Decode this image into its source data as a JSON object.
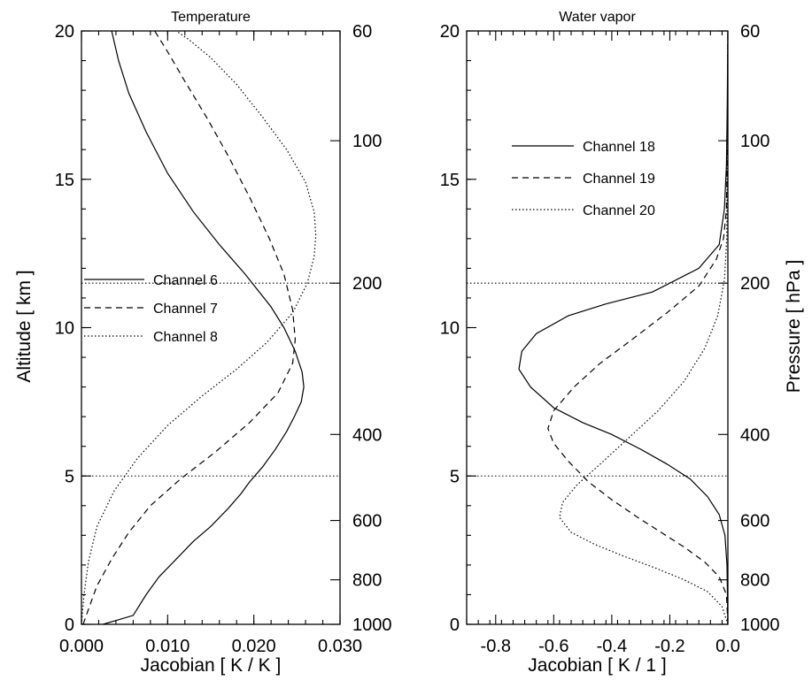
{
  "chart_data": [
    {
      "type": "line",
      "title": "Temperature",
      "xlabel": "Jacobian [ K / K ]",
      "ylabel": "Altitude [ km ]",
      "xlim": [
        0.0,
        0.03
      ],
      "ylim": [
        0,
        20
      ],
      "xticks": [
        "0.000",
        "0.010",
        "0.020",
        "0.030"
      ],
      "xtick_values": [
        0.0,
        0.01,
        0.02,
        0.03
      ],
      "yticks": [
        "0",
        "5",
        "10",
        "15",
        "20"
      ],
      "ytick_values": [
        0,
        5,
        10,
        15,
        20
      ],
      "y2ticks": [
        {
          "label": "60",
          "alt": 20.0
        },
        {
          "label": "100",
          "alt": 16.3
        },
        {
          "label": "200",
          "alt": 11.5
        },
        {
          "label": "400",
          "alt": 6.4
        },
        {
          "label": "600",
          "alt": 3.5
        },
        {
          "label": "800",
          "alt": 1.5
        },
        {
          "label": "1000",
          "alt": 0.0
        }
      ],
      "legend_position": "middle-left",
      "series": [
        {
          "name": "Channel 6",
          "style": "solid",
          "x": [
            0.0025,
            0.006,
            0.0075,
            0.009,
            0.011,
            0.013,
            0.015,
            0.017,
            0.0185,
            0.0195,
            0.021,
            0.0225,
            0.0238,
            0.0247,
            0.0255,
            0.0258,
            0.0256,
            0.0248,
            0.0235,
            0.022,
            0.019,
            0.016,
            0.013,
            0.01,
            0.0075,
            0.0055,
            0.0043,
            0.0035
          ],
          "y": [
            0.0,
            0.3,
            1.0,
            1.6,
            2.2,
            2.8,
            3.3,
            3.9,
            4.4,
            4.8,
            5.3,
            5.9,
            6.5,
            7.0,
            7.5,
            8.0,
            8.5,
            9.2,
            10.0,
            10.7,
            11.8,
            12.8,
            13.9,
            15.2,
            16.6,
            17.9,
            19.0,
            20.0
          ]
        },
        {
          "name": "Channel 7",
          "style": "dashed",
          "x": [
            0.0002,
            0.0008,
            0.0018,
            0.0035,
            0.0055,
            0.008,
            0.0115,
            0.0155,
            0.0195,
            0.0228,
            0.0245,
            0.0248,
            0.0245,
            0.0235,
            0.0218,
            0.0195,
            0.017,
            0.0145,
            0.012,
            0.01,
            0.0085
          ],
          "y": [
            0.0,
            0.5,
            1.3,
            2.2,
            3.1,
            4.0,
            4.9,
            5.8,
            6.8,
            7.8,
            8.8,
            9.6,
            10.6,
            11.8,
            13.0,
            14.4,
            15.8,
            17.1,
            18.3,
            19.3,
            20.0
          ]
        },
        {
          "name": "Channel 8",
          "style": "dotted",
          "x": [
            0.0,
            0.0003,
            0.0008,
            0.0018,
            0.0038,
            0.0065,
            0.01,
            0.014,
            0.018,
            0.0215,
            0.0245,
            0.0262,
            0.027,
            0.0272,
            0.027,
            0.026,
            0.0238,
            0.021,
            0.018,
            0.015,
            0.0125,
            0.011
          ],
          "y": [
            0.0,
            1.0,
            2.1,
            3.3,
            4.5,
            5.6,
            6.7,
            7.7,
            8.6,
            9.5,
            10.5,
            11.5,
            12.4,
            13.1,
            13.9,
            14.9,
            16.0,
            17.1,
            18.2,
            19.1,
            19.7,
            20.0
          ]
        }
      ],
      "reference_lines": [
        {
          "y": 11.5,
          "style": "dotted"
        },
        {
          "y": 5.0,
          "style": "dotted"
        }
      ]
    },
    {
      "type": "line",
      "title": "Water vapor",
      "xlabel": "Jacobian [ K / 1 ]",
      "ylabel": "Pressure [ hPa ]",
      "xlim": [
        -0.9,
        0.0
      ],
      "ylim": [
        0,
        20
      ],
      "xticks": [
        "-0.8",
        "-0.6",
        "-0.4",
        "-0.2",
        "0.0"
      ],
      "xtick_values": [
        -0.8,
        -0.6,
        -0.4,
        -0.2,
        0.0
      ],
      "yticks": [
        "0",
        "5",
        "10",
        "15",
        "20"
      ],
      "ytick_values": [
        0,
        5,
        10,
        15,
        20
      ],
      "y2ticks": [
        {
          "label": "60",
          "alt": 20.0
        },
        {
          "label": "100",
          "alt": 16.3
        },
        {
          "label": "200",
          "alt": 11.5
        },
        {
          "label": "400",
          "alt": 6.4
        },
        {
          "label": "600",
          "alt": 3.5
        },
        {
          "label": "800",
          "alt": 1.5
        },
        {
          "label": "1000",
          "alt": 0.0
        }
      ],
      "legend_position": "upper-middle",
      "series": [
        {
          "name": "Channel 18",
          "style": "solid",
          "x": [
            0.0,
            -0.003,
            -0.01,
            -0.03,
            -0.07,
            -0.13,
            -0.21,
            -0.3,
            -0.4,
            -0.5,
            -0.6,
            -0.68,
            -0.72,
            -0.71,
            -0.66,
            -0.55,
            -0.42,
            -0.26,
            -0.1,
            -0.03,
            -0.012,
            -0.005,
            -0.002,
            0.0
          ],
          "y": [
            0.0,
            2.0,
            3.0,
            3.7,
            4.3,
            4.9,
            5.4,
            5.9,
            6.4,
            6.8,
            7.3,
            8.0,
            8.6,
            9.2,
            9.8,
            10.4,
            10.8,
            11.2,
            12.0,
            12.8,
            14.0,
            15.5,
            17.5,
            20.0
          ]
        },
        {
          "name": "Channel 19",
          "style": "dashed",
          "x": [
            0.0,
            -0.005,
            -0.03,
            -0.08,
            -0.15,
            -0.23,
            -0.31,
            -0.4,
            -0.48,
            -0.55,
            -0.6,
            -0.62,
            -0.6,
            -0.53,
            -0.44,
            -0.33,
            -0.21,
            -0.1,
            -0.04,
            -0.015,
            -0.005,
            -0.002,
            0.0
          ],
          "y": [
            0.0,
            1.0,
            1.6,
            2.1,
            2.6,
            3.1,
            3.6,
            4.2,
            4.8,
            5.5,
            6.1,
            6.6,
            7.2,
            8.0,
            8.8,
            9.6,
            10.5,
            11.4,
            12.3,
            13.0,
            14.0,
            16.0,
            20.0
          ]
        },
        {
          "name": "Channel 20",
          "style": "dotted",
          "x": [
            0.0,
            -0.02,
            -0.07,
            -0.15,
            -0.25,
            -0.36,
            -0.46,
            -0.54,
            -0.58,
            -0.57,
            -0.52,
            -0.44,
            -0.34,
            -0.24,
            -0.15,
            -0.08,
            -0.035,
            -0.012,
            -0.004,
            0.0
          ],
          "y": [
            0.0,
            0.6,
            1.1,
            1.5,
            1.9,
            2.3,
            2.7,
            3.1,
            3.6,
            4.1,
            4.7,
            5.4,
            6.3,
            7.2,
            8.2,
            9.3,
            10.4,
            11.6,
            13.0,
            20.0
          ]
        }
      ],
      "reference_lines": [
        {
          "y": 11.5,
          "style": "dotted"
        },
        {
          "y": 5.0,
          "style": "dotted"
        }
      ]
    }
  ]
}
